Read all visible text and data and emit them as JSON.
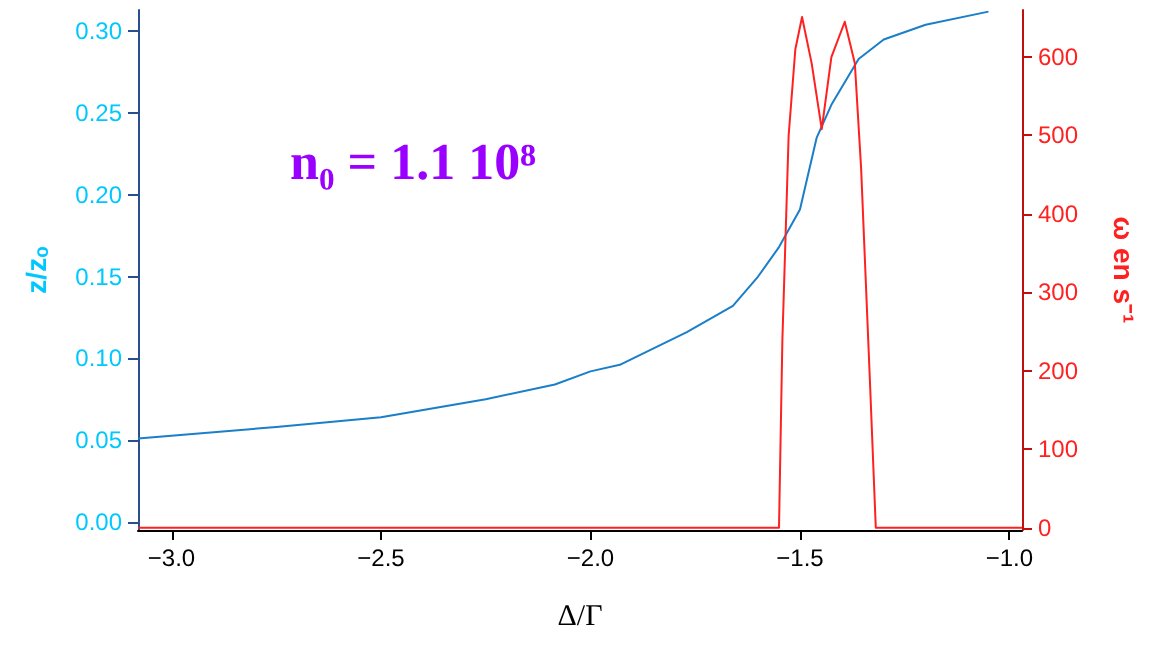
{
  "chart_data": {
    "type": "line",
    "xlabel": "Δ/Γ",
    "ylabel": "z/zₒ",
    "y2label": "ω en s⁻¹",
    "annotations": [
      "n₀ = 1.1 10⁸"
    ],
    "xlim": [
      -3.08,
      -0.97
    ],
    "xticks": [
      {
        "value": -3,
        "label": "−3.0"
      },
      {
        "value": -2.5,
        "label": "−2.5"
      },
      {
        "value": -2,
        "label": "−2.0"
      },
      {
        "value": -1.5,
        "label": "−1.5"
      },
      {
        "value": -1,
        "label": "−1.0"
      }
    ],
    "ylim": [
      -0.005,
      0.313
    ],
    "yticks": [
      {
        "value": 0,
        "label": "0.00"
      },
      {
        "value": 0.05,
        "label": "0.05"
      },
      {
        "value": 0.1,
        "label": "0.10"
      },
      {
        "value": 0.15,
        "label": "0.15"
      },
      {
        "value": 0.2,
        "label": "0.20"
      },
      {
        "value": 0.25,
        "label": "0.25"
      },
      {
        "value": 0.3,
        "label": "0.30"
      }
    ],
    "y2lim": [
      -3,
      660
    ],
    "y2ticks": [
      0,
      100,
      200,
      300,
      400,
      500,
      600
    ],
    "grid": false,
    "marker": "none",
    "line_style": "solid",
    "series": [
      {
        "color": "#1a7fc8",
        "x": [
          -3.08,
          -2.75,
          -2.5,
          -2.25,
          -2.085,
          -2.0,
          -1.93,
          -1.77,
          -1.66,
          -1.6,
          -1.55,
          -1.5,
          -1.46,
          -1.425,
          -1.36,
          -1.3,
          -1.2,
          -1.05
        ],
        "values": [
          0.051,
          0.058,
          0.064,
          0.075,
          0.084,
          0.092,
          0.096,
          0.116,
          0.132,
          0.15,
          0.168,
          0.191,
          0.235,
          0.255,
          0.283,
          0.295,
          0.304,
          0.312
        ]
      },
      {
        "color": "#ff2020",
        "axis": "y2",
        "x": [
          -3.08,
          -1.55,
          -1.542,
          -1.527,
          -1.511,
          -1.495,
          -1.472,
          -1.448,
          -1.425,
          -1.393,
          -1.369,
          -1.354,
          -1.333,
          -1.319,
          -0.97
        ],
        "values": [
          0,
          0,
          238,
          500,
          610,
          651,
          592,
          508,
          600,
          645,
          592,
          458,
          187,
          0,
          0
        ]
      }
    ]
  }
}
